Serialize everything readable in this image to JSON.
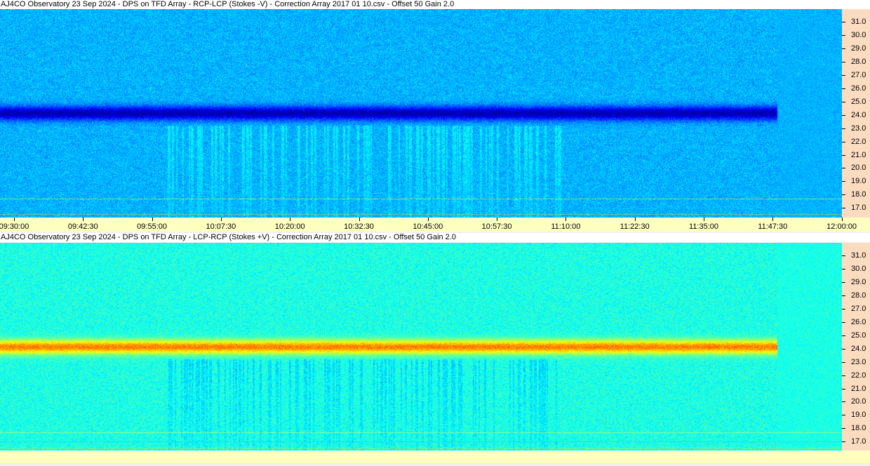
{
  "panels": [
    {
      "title": "AJ4CO Observatory 23 Sep 2024  -  DPS on TFD Array  -  RCP-LCP (Stokes -V)  -  Correction Array 2017 01 10.csv  -  Offset 50  Gain 2.0",
      "polarity": "negative"
    },
    {
      "title": "AJ4CO Observatory 23 Sep 2024  -  DPS on TFD Array  -  LCP-RCP (Stokes +V)  -  Correction Array 2017 01 10.csv  -  Offset 50  Gain 2.0",
      "polarity": "positive"
    }
  ],
  "freq_labels": [
    "31.0",
    "30.0",
    "29.0",
    "28.0",
    "27.0",
    "26.0",
    "25.0",
    "24.0",
    "23.0",
    "22.0",
    "21.0",
    "20.0",
    "19.0",
    "18.0",
    "17.0"
  ],
  "time_labels": [
    "09:30:00",
    "09:42:30",
    "09:55:00",
    "10:07:30",
    "10:20:00",
    "10:32:30",
    "10:45:00",
    "10:57:30",
    "11:10:00",
    "11:22:30",
    "11:35:00",
    "11:47:30",
    "12:00:00"
  ],
  "colors": {
    "freq_axis_bg": "#fcdcc0",
    "time_axis_bg": "#ffffc0"
  }
}
